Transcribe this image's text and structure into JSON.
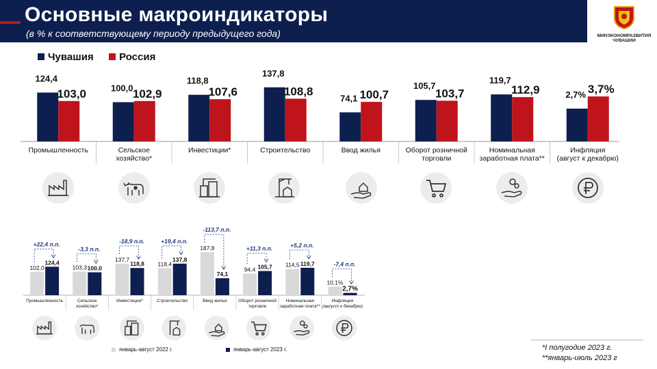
{
  "header": {
    "title": "Основные макроиндикаторы",
    "subtitle": "(в % к соответствующему периоду предыдущего года)",
    "logo_text_1": "МИНЭКОНОМРАЗВИТИЯ",
    "logo_text_2": "ЧУВАШИИ"
  },
  "legend_top": {
    "chuvashia": "Чувашия",
    "russia": "Россия"
  },
  "colors": {
    "chuvashia": "#0d1f4f",
    "russia": "#c0141c",
    "prev_year": "#d9d9d9",
    "header": "#0d1f4f"
  },
  "chart_data": [
    {
      "type": "bar",
      "categories": [
        "Промышленность",
        "Сельское хозяйство*",
        "Инвестиции*",
        "Строительство",
        "Ввод жилья",
        "Оборот розничной торговли",
        "Номинальная заработная плата**",
        "Инфляция (август к декабрю)"
      ],
      "category_lines": [
        [
          "Промышленность"
        ],
        [
          "Сельское",
          "хозяйство*"
        ],
        [
          "Инвестиции*"
        ],
        [
          "Строительство"
        ],
        [
          "Ввод жилья"
        ],
        [
          "Оборот розничной",
          "торговли"
        ],
        [
          "Номинальная",
          "заработная плата**"
        ],
        [
          "Инфляция",
          "(август к декабрю)"
        ]
      ],
      "series": [
        {
          "name": "Чувашия",
          "values": [
            124.4,
            100.0,
            118.8,
            137.8,
            74.1,
            105.7,
            119.7,
            2.7
          ],
          "labels": [
            "124,4",
            "100,0",
            "118,8",
            "137,8",
            "74,1",
            "105,7",
            "119,7",
            "2,7%"
          ]
        },
        {
          "name": "Россия",
          "values": [
            103.0,
            102.9,
            107.6,
            108.8,
            100.7,
            103.7,
            112.9,
            3.7
          ],
          "labels": [
            "103,0",
            "102,9",
            "107,6",
            "108,8",
            "100,7",
            "103,7",
            "112,9",
            "3,7%"
          ]
        }
      ],
      "icons": [
        "factory-icon",
        "cow-icon",
        "crane-buildings-icon",
        "construction-crane-icon",
        "hand-house-icon",
        "shopping-cart-icon",
        "hand-coins-icon",
        "ruble-icon"
      ]
    },
    {
      "type": "bar",
      "categories": [
        "Промышленность",
        "Сельское хозяйство*",
        "Инвестиции*",
        "Строительство",
        "Ввод жилья",
        "Оборот розничной торговли",
        "Номинальная заработная плата**",
        "Инфляция (август к декабрю)"
      ],
      "category_lines": [
        [
          "Промышленность"
        ],
        [
          "Сельское",
          "хозяйство*"
        ],
        [
          "Инвестиции*"
        ],
        [
          "Строительство"
        ],
        [
          "Ввод жилья"
        ],
        [
          "Оборот розничной",
          "торговли"
        ],
        [
          "Номинальная",
          "заработная плата**"
        ],
        [
          "Инфляция",
          "(август к декабрю)"
        ]
      ],
      "series": [
        {
          "name": "январь-август 2022 г.",
          "values": [
            102.0,
            103.3,
            137.7,
            118.4,
            187.8,
            94.4,
            114.5,
            10.1
          ],
          "labels": [
            "102,0",
            "103,3",
            "137,7",
            "118,4",
            "187,8",
            "94,4",
            "114,5",
            "10,1%"
          ]
        },
        {
          "name": "январь-август 2023 г.",
          "values": [
            124.4,
            100.0,
            118.8,
            137.8,
            74.1,
            105.7,
            119.7,
            2.7
          ],
          "labels": [
            "124,4",
            "100,0",
            "118,8",
            "137,8",
            "74,1",
            "105,7",
            "119,7",
            "2,7%"
          ]
        }
      ],
      "annotations": [
        "+22,4 п.п.",
        "-3,3 п.п.",
        "-18,9 п.п.",
        "+19,4 п.п.",
        "-113,7 п.п.",
        "+11,3 п.п.",
        "+5,2 п.п.",
        "-7,4 п.п."
      ]
    }
  ],
  "notes": [
    "*I полугодие 2023 г.",
    "**январь-июль 2023 г"
  ]
}
